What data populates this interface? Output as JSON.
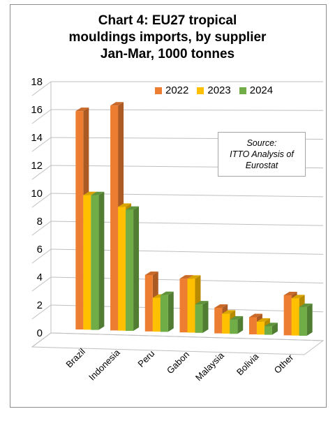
{
  "title": {
    "line1": "Chart 4: EU27 tropical",
    "line2": "mouldings imports, by supplier",
    "line3": "Jan-Mar, 1000 tonnes"
  },
  "source": {
    "line1": "Source:",
    "line2": "ITTO Analysis of",
    "line3": "Eurostat"
  },
  "colors": {
    "2022": "#ed7d31",
    "2023": "#ffc000",
    "2024": "#70ad47"
  },
  "chart_data": {
    "type": "bar",
    "categories": [
      "Brazil",
      "Indonesia",
      "Peru",
      "Gabon",
      "Malaysia",
      "Bolivia",
      "Other"
    ],
    "series": [
      {
        "name": "2022",
        "values": [
          15.6,
          16.0,
          4.0,
          3.8,
          1.8,
          1.2,
          2.8
        ]
      },
      {
        "name": "2023",
        "values": [
          9.6,
          8.8,
          2.4,
          3.8,
          1.4,
          0.9,
          2.6
        ]
      },
      {
        "name": "2024",
        "values": [
          9.6,
          8.6,
          2.6,
          2.0,
          1.0,
          0.6,
          2.0
        ]
      }
    ],
    "yticks": [
      0,
      2,
      4,
      6,
      8,
      10,
      12,
      14,
      16,
      18
    ],
    "ylim": [
      0,
      18
    ],
    "grid": true,
    "legend_position": "top-right"
  }
}
